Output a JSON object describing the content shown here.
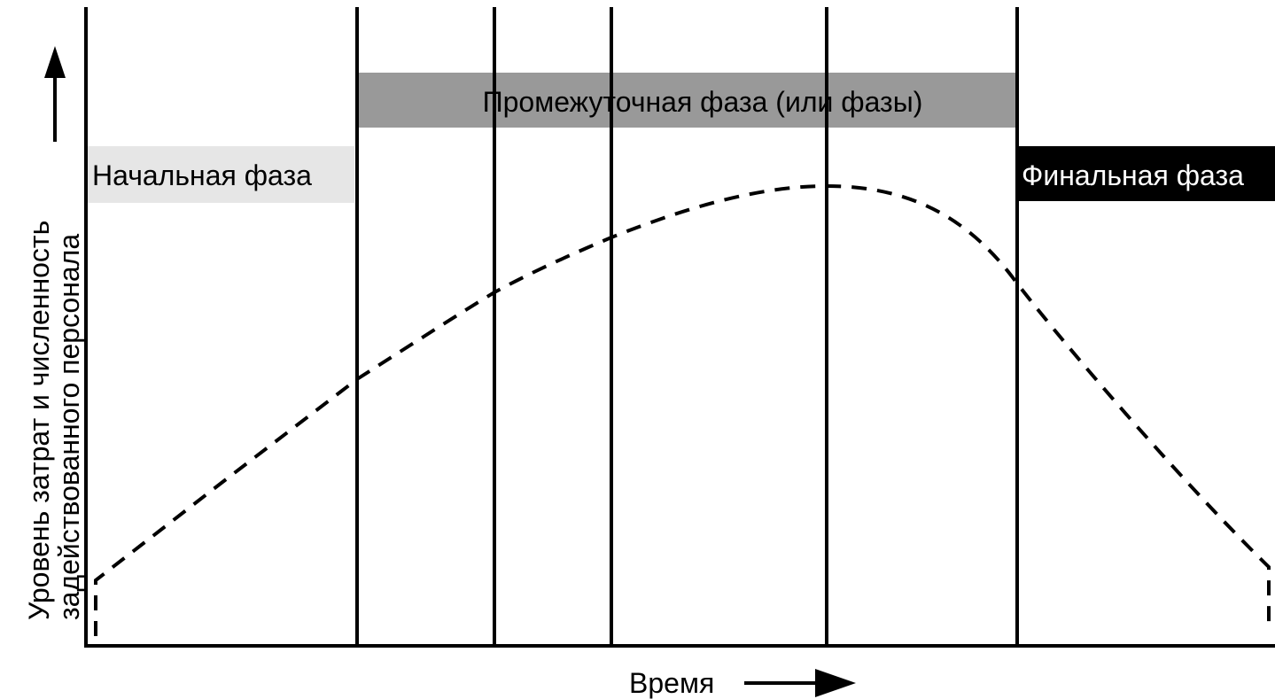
{
  "phases": {
    "initial": {
      "label": "Начальная фаза",
      "fill": "#e6e6e6",
      "text_color": "#000000"
    },
    "intermediate": {
      "label": "Промежуточная фаза (или фазы)",
      "fill": "#999999",
      "text_color": "#000000"
    },
    "final": {
      "label": "Финальная фаза",
      "fill": "#000000",
      "text_color": "#ffffff"
    }
  },
  "axes": {
    "y_label_line1": "Уровень затрат и численность",
    "y_label_line2": "задействованного персонала",
    "x_label": "Время"
  },
  "curve": {
    "style": "dashed",
    "color": "#000000",
    "shape": "rises from a low level at the start, peaks in the intermediate phase, falls in the final phase"
  }
}
